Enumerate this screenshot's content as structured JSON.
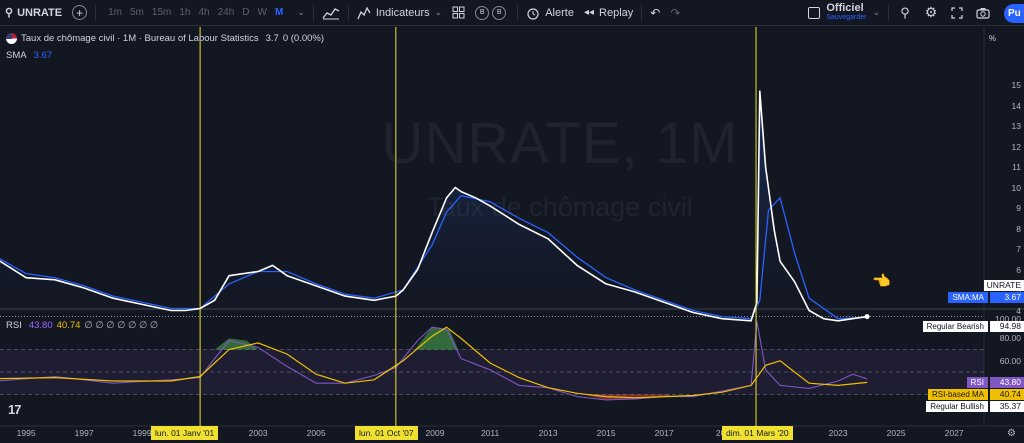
{
  "toolbar": {
    "symbol": "UNRATE",
    "timeframes": [
      "1m",
      "5m",
      "15m",
      "1h",
      "4h",
      "24h",
      "D",
      "W",
      "M"
    ],
    "active_timeframe": "M",
    "indicators_label": "Indicateurs",
    "badge_b1": "B",
    "badge_b2": "B",
    "alert_label": "Alerte",
    "replay_label": "Replay",
    "layout_name": "Officiel",
    "layout_status": "Sauvegarder",
    "publish_label": "Pu"
  },
  "legend": {
    "title": "Taux de chômage civil · 1M · Bureau of Labour Statistics",
    "last_value": "3.7",
    "change": "0 (0.00%)",
    "sma_label": "SMA",
    "sma_value": "3.67",
    "rsi_label": "RSI",
    "rsi_value": "43.80",
    "rsi_ma_value": "40.74",
    "rsi_extra": "∅ ∅ ∅ ∅ ∅ ∅ ∅"
  },
  "watermark": {
    "symbol": "UNRATE, 1M",
    "description": "Taux de chômage civil"
  },
  "price_axis": {
    "unit": "%",
    "ticks": [
      "15",
      "14",
      "13",
      "12",
      "11",
      "10",
      "9",
      "8",
      "7",
      "6",
      "5",
      "4"
    ],
    "series_tag": "UNRATE",
    "sma_tag_label": "SMA:MA",
    "sma_tag_value": "3.67"
  },
  "rsi_axis": {
    "ticks": [
      "100.00",
      "80.00",
      "60.00",
      "20.00"
    ],
    "bearish_label": "Regular Bearish",
    "bearish_value": "94.98",
    "rsi_tag_label": "RSI",
    "rsi_tag_value": "43.80",
    "rsi_ma_label": "RSI-based MA",
    "rsi_ma_value": "40.74",
    "bullish_label": "Regular Bullish",
    "bullish_value": "35.37"
  },
  "time_axis": {
    "years": [
      "1995",
      "1997",
      "1999",
      "2003",
      "2005",
      "2009",
      "2011",
      "2013",
      "2015",
      "2017",
      "20",
      "2023",
      "2025",
      "2027"
    ],
    "markers": [
      "lun. 01 Janv '01",
      "lun. 01 Oct '07",
      "dim. 01 Mars '20"
    ]
  },
  "colors": {
    "background": "#131722",
    "price_line": "#ffffff",
    "sma_line": "#2962ff",
    "rsi_line": "#7e57c2",
    "rsi_ma_line": "#f0c000",
    "marker_line": "#f0e130"
  },
  "chart_data": {
    "type": "line",
    "title": "Taux de chômage civil",
    "ylabel": "%",
    "ylim": [
      3.3,
      15
    ],
    "series": [
      {
        "name": "UNRATE",
        "x": [
          1994.0,
          1995.0,
          1996.0,
          1997.0,
          1998.0,
          1999.0,
          2000.0,
          2000.5,
          2001.0,
          2001.5,
          2002.0,
          2002.5,
          2003.0,
          2003.5,
          2004.0,
          2005.0,
          2006.0,
          2007.0,
          2007.75,
          2008.0,
          2008.5,
          2009.0,
          2009.5,
          2009.8,
          2010.0,
          2010.5,
          2011.0,
          2012.0,
          2013.0,
          2014.0,
          2015.0,
          2016.0,
          2017.0,
          2018.0,
          2019.0,
          2020.0,
          2020.2,
          2020.3,
          2020.5,
          2020.8,
          2021.0,
          2021.5,
          2022.0,
          2022.5,
          2023.0,
          2023.5,
          2024.0
        ],
        "values": [
          6.5,
          5.6,
          5.5,
          5.1,
          4.6,
          4.3,
          4.0,
          4.0,
          4.1,
          4.5,
          5.7,
          5.8,
          5.9,
          6.2,
          5.7,
          5.2,
          4.7,
          4.5,
          4.7,
          5.0,
          6.0,
          7.8,
          9.5,
          10.0,
          9.8,
          9.5,
          9.1,
          8.2,
          7.5,
          6.2,
          5.3,
          4.9,
          4.4,
          3.9,
          3.6,
          3.5,
          4.4,
          14.7,
          11.0,
          7.9,
          6.4,
          5.4,
          4.0,
          3.6,
          3.5,
          3.6,
          3.7
        ]
      },
      {
        "name": "SMA",
        "x": [
          1994.0,
          1995.0,
          1996.0,
          1997.0,
          1998.0,
          1999.0,
          2000.0,
          2001.0,
          2002.0,
          2003.0,
          2004.0,
          2005.0,
          2006.0,
          2007.0,
          2008.0,
          2009.0,
          2009.5,
          2010.0,
          2011.0,
          2012.0,
          2013.0,
          2014.0,
          2015.0,
          2016.0,
          2017.0,
          2018.0,
          2019.0,
          2020.0,
          2020.3,
          2020.6,
          2021.0,
          2021.5,
          2022.0,
          2023.0,
          2024.0
        ],
        "values": [
          6.6,
          5.8,
          5.6,
          5.2,
          4.7,
          4.4,
          4.1,
          4.1,
          5.3,
          5.9,
          5.9,
          5.3,
          4.8,
          4.6,
          5.0,
          7.2,
          8.8,
          9.6,
          9.3,
          8.5,
          7.8,
          6.6,
          5.6,
          5.0,
          4.5,
          4.0,
          3.7,
          3.6,
          4.5,
          8.9,
          9.5,
          6.8,
          4.6,
          3.6,
          3.67
        ]
      },
      {
        "name": "RSI",
        "x": [
          1994.0,
          1996.0,
          1998.0,
          2000.0,
          2001.0,
          2001.5,
          2002.0,
          2003.0,
          2004.0,
          2005.0,
          2006.0,
          2007.0,
          2007.75,
          2008.5,
          2009.0,
          2009.5,
          2010.0,
          2011.0,
          2012.0,
          2013.0,
          2014.0,
          2015.0,
          2016.0,
          2017.0,
          2018.0,
          2019.0,
          2020.0,
          2020.2,
          2020.5,
          2021.0,
          2022.0,
          2023.0,
          2023.5,
          2024.0
        ],
        "values": [
          42,
          46,
          40,
          43,
          45,
          62,
          78,
          72,
          55,
          40,
          40,
          47,
          54,
          78,
          90,
          88,
          62,
          52,
          38,
          36,
          28,
          25,
          26,
          28,
          28,
          33,
          38,
          94.98,
          52,
          38,
          35.37,
          42,
          48,
          43.8
        ]
      },
      {
        "name": "RSI-based MA",
        "x": [
          1994.0,
          1996.0,
          1998.0,
          2000.0,
          2001.0,
          2002.0,
          2003.0,
          2004.0,
          2005.0,
          2006.0,
          2007.0,
          2008.0,
          2009.0,
          2009.5,
          2010.0,
          2011.0,
          2012.0,
          2013.0,
          2014.0,
          2015.0,
          2016.0,
          2017.0,
          2018.0,
          2019.0,
          2020.0,
          2020.5,
          2021.0,
          2022.0,
          2023.0,
          2024.0
        ],
        "values": [
          44,
          45,
          42,
          42,
          46,
          70,
          76,
          66,
          48,
          40,
          43,
          60,
          82,
          90,
          80,
          58,
          45,
          36,
          31,
          28,
          27,
          28,
          29,
          32,
          38,
          56,
          60,
          40,
          38,
          40.74
        ]
      }
    ],
    "markers_x": [
      2001.0,
      2007.75,
      2020.17
    ],
    "rsi_ylim": [
      20,
      100
    ],
    "rsi_levels": [
      70,
      50,
      30
    ]
  }
}
